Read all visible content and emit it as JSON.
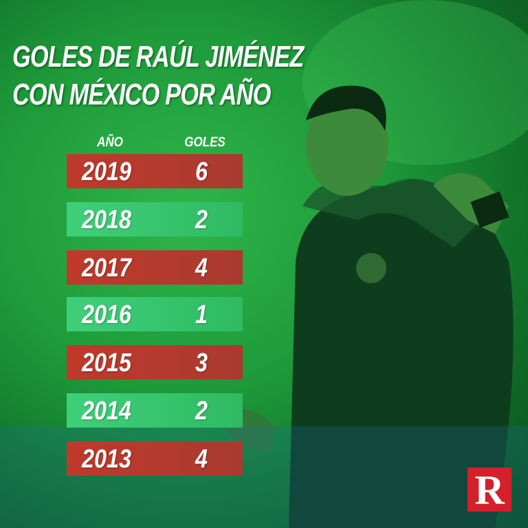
{
  "header": {
    "title_lines": [
      "GOLES DE RAÚL JIMÉNEZ",
      "CON MÉXICO POR AÑO"
    ]
  },
  "table": {
    "columns": [
      "AÑO",
      "GOLES"
    ],
    "rows": [
      [
        "2019",
        "6"
      ],
      [
        "2018",
        "2"
      ],
      [
        "2017",
        "4"
      ],
      [
        "2016",
        "1"
      ],
      [
        "2015",
        "3"
      ],
      [
        "2014",
        "2"
      ],
      [
        "2013",
        "4"
      ]
    ]
  },
  "logo": "R"
}
